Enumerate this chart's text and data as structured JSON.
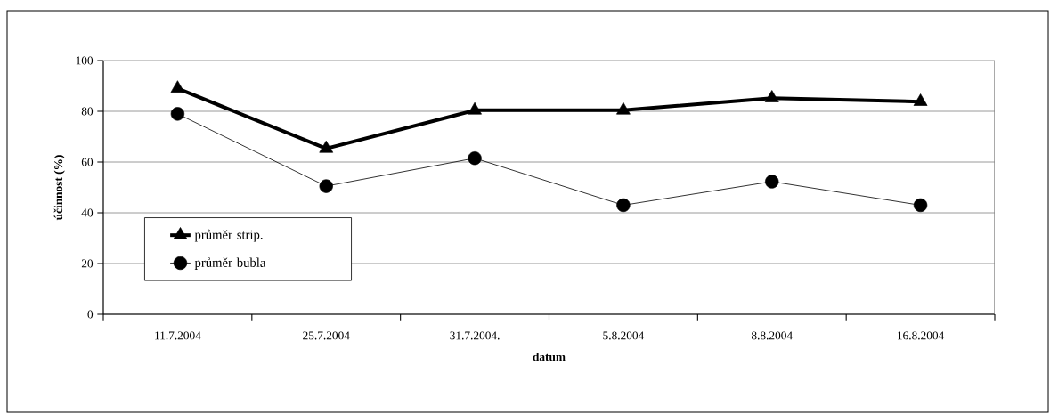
{
  "chart_data": {
    "type": "line",
    "xlabel": "datum",
    "ylabel": "účinnost (%)",
    "categories": [
      "11.7.2004",
      "25.7.2004",
      "31.7.2004.",
      "5.8.2004",
      "8.8.2004",
      "16.8.2004"
    ],
    "series": [
      {
        "name": "průměr strip.",
        "color": "#000000",
        "marker": "triangle",
        "values": [
          89,
          65.3,
          80.4,
          80.4,
          85.2,
          83.8
        ]
      },
      {
        "name": "průměr bubla",
        "color": "#000000",
        "marker": "circle",
        "values": [
          79,
          50.5,
          61.5,
          43,
          52.3,
          43
        ]
      }
    ],
    "ylim": [
      0,
      100
    ],
    "yticks": [
      0,
      20,
      40,
      60,
      80,
      100
    ],
    "grid": "y",
    "legend": "bottom left",
    "line_style": "solid"
  }
}
